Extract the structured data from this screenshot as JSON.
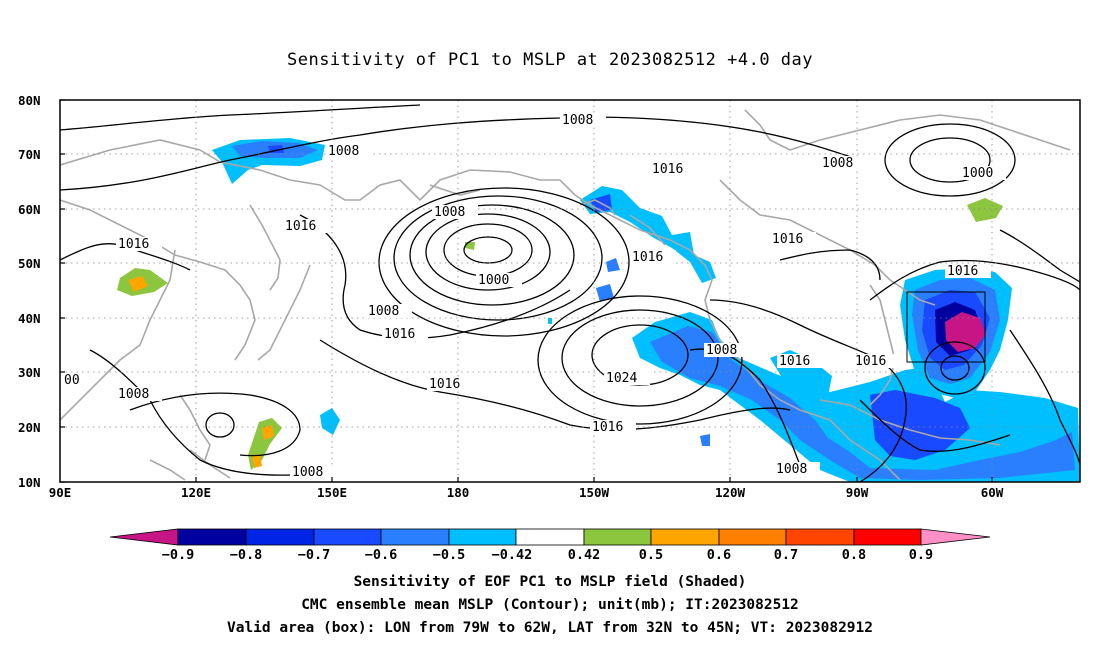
{
  "title": "Sensitivity of PC1 to MSLP at 2023082512 +4.0 day",
  "axes": {
    "lat_labels": [
      "80N",
      "70N",
      "60N",
      "50N",
      "40N",
      "30N",
      "20N",
      "10N"
    ],
    "lon_labels": [
      "90E",
      "120E",
      "150E",
      "180",
      "150W",
      "120W",
      "90W",
      "60W"
    ]
  },
  "contour_labels": [
    {
      "text": "1008"
    },
    {
      "text": "1008"
    },
    {
      "text": "1016"
    },
    {
      "text": "1008"
    },
    {
      "text": "1000"
    },
    {
      "text": "1016"
    },
    {
      "text": "1016"
    },
    {
      "text": "1008"
    },
    {
      "text": "1000"
    },
    {
      "text": "1016"
    },
    {
      "text": "1016"
    },
    {
      "text": "1016"
    },
    {
      "text": "1016"
    },
    {
      "text": "1008"
    },
    {
      "text": "1016"
    },
    {
      "text": "1008"
    },
    {
      "text": "1024"
    },
    {
      "text": "1016"
    },
    {
      "text": "1008"
    },
    {
      "text": "00"
    },
    {
      "text": "1008"
    },
    {
      "text": "1008"
    },
    {
      "text": "1016"
    },
    {
      "text": "1016"
    }
  ],
  "colorbar": {
    "colors": [
      "#c71585",
      "#0000a0",
      "#0024e6",
      "#1a4aff",
      "#2a7fff",
      "#00bfff",
      "#ffffff",
      "#8cc63f",
      "#ffa500",
      "#ff7f00",
      "#ff4500",
      "#ff0000",
      "#ff8fc7"
    ],
    "labels": [
      "−0.9",
      "−0.8",
      "−0.7",
      "−0.6",
      "−0.5",
      "−0.42",
      "0.42",
      "0.5",
      "0.6",
      "0.7",
      "0.8",
      "0.9"
    ]
  },
  "caption": {
    "line1": "Sensitivity of EOF PC1 to MSLP field (Shaded)",
    "line2": "CMC ensemble mean MSLP (Contour); unit(mb); IT:2023082512",
    "line3": "Valid area (box): LON from 79W to 62W, LAT from 32N to 45N; VT: 2023082912"
  }
}
